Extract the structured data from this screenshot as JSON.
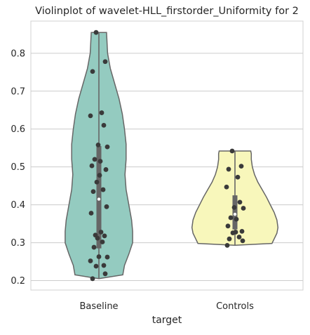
{
  "chart_data": {
    "type": "violin",
    "title": "Violinplot of wavelet-HLL_firstorder_Uniformity for 2",
    "xlabel": "target",
    "ylabel": "",
    "categories": [
      "Baseline",
      "Controls"
    ],
    "ylim": [
      0.175,
      0.885
    ],
    "yticks": [
      0.2,
      0.3,
      0.4,
      0.5,
      0.6,
      0.7,
      0.8
    ],
    "yticklabels": [
      "0.2",
      "0.3",
      "0.4",
      "0.5",
      "0.6",
      "0.7",
      "0.8"
    ],
    "grid": true,
    "series": [
      {
        "category": "Baseline",
        "fill": "#94cbc0",
        "min": 0.205,
        "max": 0.855,
        "q1": 0.285,
        "median": 0.415,
        "q3": 0.555,
        "points": [
          0.855,
          0.778,
          0.752,
          0.643,
          0.635,
          0.61,
          0.558,
          0.553,
          0.52,
          0.515,
          0.503,
          0.493,
          0.478,
          0.46,
          0.44,
          0.435,
          0.395,
          0.378,
          0.328,
          0.32,
          0.318,
          0.312,
          0.302,
          0.288,
          0.263,
          0.262,
          0.252,
          0.24,
          0.238,
          0.218,
          0.205
        ],
        "density": [
          [
            0.205,
            0.0
          ],
          [
            0.215,
            0.44
          ],
          [
            0.24,
            0.47
          ],
          [
            0.27,
            0.55
          ],
          [
            0.3,
            0.62
          ],
          [
            0.33,
            0.62
          ],
          [
            0.36,
            0.6
          ],
          [
            0.4,
            0.55
          ],
          [
            0.44,
            0.5
          ],
          [
            0.48,
            0.48
          ],
          [
            0.52,
            0.5
          ],
          [
            0.56,
            0.5
          ],
          [
            0.6,
            0.47
          ],
          [
            0.64,
            0.43
          ],
          [
            0.68,
            0.37
          ],
          [
            0.72,
            0.29
          ],
          [
            0.76,
            0.21
          ],
          [
            0.8,
            0.16
          ],
          [
            0.84,
            0.145
          ],
          [
            0.855,
            0.14
          ]
        ]
      },
      {
        "category": "Controls",
        "fill": "#f8f7bb",
        "min": 0.293,
        "max": 0.542,
        "q1": 0.335,
        "median": 0.375,
        "q3": 0.425,
        "points": [
          0.542,
          0.502,
          0.494,
          0.473,
          0.447,
          0.407,
          0.393,
          0.391,
          0.366,
          0.362,
          0.344,
          0.33,
          0.328,
          0.326,
          0.315,
          0.31,
          0.305,
          0.293
        ],
        "density": [
          [
            0.293,
            0.0
          ],
          [
            0.298,
            0.68
          ],
          [
            0.31,
            0.72
          ],
          [
            0.325,
            0.77
          ],
          [
            0.34,
            0.79
          ],
          [
            0.36,
            0.77
          ],
          [
            0.38,
            0.72
          ],
          [
            0.4,
            0.65
          ],
          [
            0.42,
            0.58
          ],
          [
            0.44,
            0.5
          ],
          [
            0.46,
            0.42
          ],
          [
            0.48,
            0.36
          ],
          [
            0.5,
            0.32
          ],
          [
            0.52,
            0.3
          ],
          [
            0.535,
            0.3
          ],
          [
            0.542,
            0.29
          ]
        ]
      }
    ]
  }
}
